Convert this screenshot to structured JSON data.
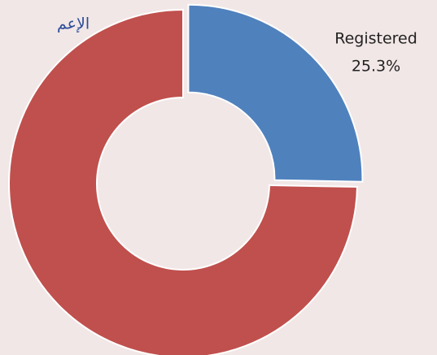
{
  "chart_data": {
    "type": "donut",
    "title": "الإعم",
    "categories": [
      "Registered",
      null
    ],
    "values": [
      25.3,
      74.7
    ],
    "value_labels": [
      "25.3%",
      null
    ],
    "colors": [
      "#4f81bd",
      "#c0504d"
    ]
  }
}
